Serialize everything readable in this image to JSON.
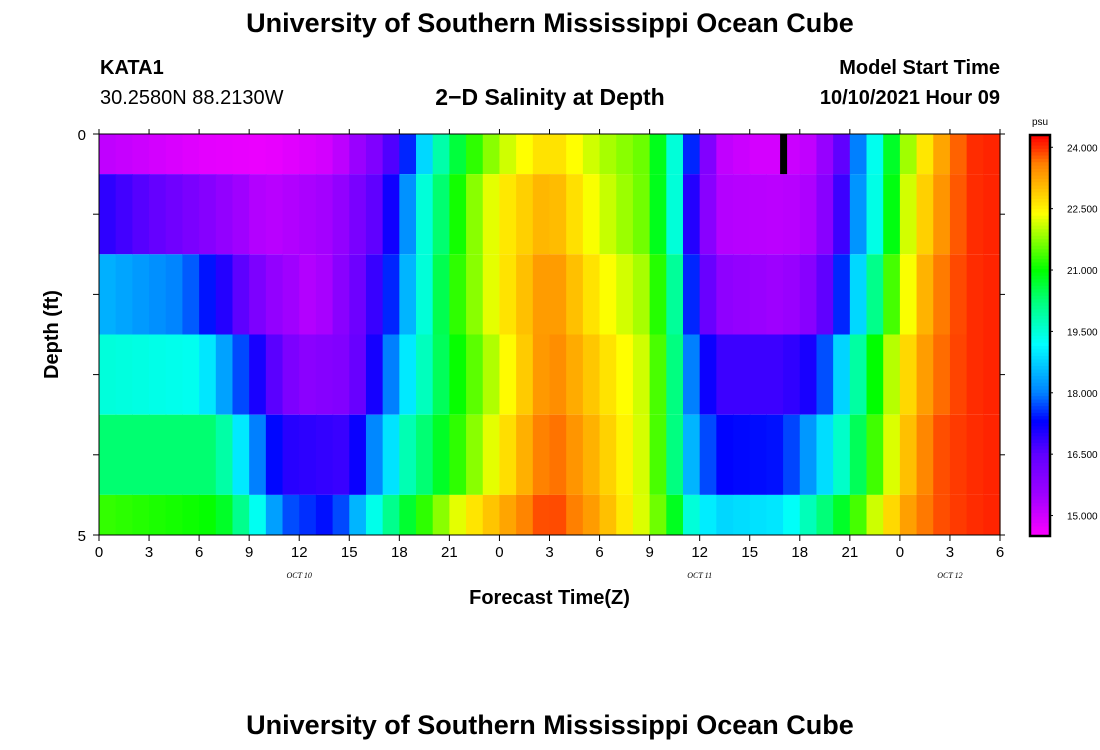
{
  "page": {
    "title_top": "University of Southern Mississippi Ocean Cube",
    "title_bottom": "University of Southern Mississippi Ocean Cube",
    "station": "KATA1",
    "coords": "30.2580N  88.2130W",
    "plot_title": "2−D Salinity at Depth",
    "model_label": "Model Start Time",
    "model_time": "10/10/2021 Hour 09"
  },
  "chart_data": {
    "type": "heatmap",
    "title": "2−D Salinity at Depth",
    "xlabel": "Forecast Time(Z)",
    "ylabel": "Depth (ft)",
    "x_tick_labels": [
      "0",
      "3",
      "6",
      "9",
      "12",
      "15",
      "18",
      "21",
      "0",
      "3",
      "6",
      "9",
      "12",
      "15",
      "18",
      "21",
      "0",
      "3",
      "6"
    ],
    "x_hours": [
      0,
      3,
      6,
      9,
      12,
      15,
      18,
      21,
      24,
      27,
      30,
      33,
      36,
      39,
      42,
      45,
      48,
      51,
      54
    ],
    "date_labels": [
      {
        "label": "OCT 10",
        "hour": 12
      },
      {
        "label": "OCT 11",
        "hour": 36
      },
      {
        "label": "OCT 12",
        "hour": 51
      }
    ],
    "y_tick_labels": [
      "0",
      "5"
    ],
    "ylim": [
      0,
      5
    ],
    "xlim": [
      0,
      54
    ],
    "depth_layers": [
      {
        "from": 0,
        "to": 0.5
      },
      {
        "from": 0.5,
        "to": 1.5
      },
      {
        "from": 1.5,
        "to": 2.5
      },
      {
        "from": 2.5,
        "to": 3.5
      },
      {
        "from": 3.5,
        "to": 4.5
      },
      {
        "from": 4.5,
        "to": 5
      }
    ],
    "salinity_knots": [
      [
        [
          0,
          15.2
        ],
        [
          6,
          14.8
        ],
        [
          10,
          14.7
        ],
        [
          14,
          15.0
        ],
        [
          17,
          16.2
        ],
        [
          18.5,
          17.5
        ],
        [
          20,
          19.5
        ],
        [
          22,
          21.0
        ],
        [
          24,
          22.0
        ],
        [
          27,
          22.8
        ],
        [
          30,
          22.0
        ],
        [
          33,
          21.5
        ],
        [
          34.5,
          19.5
        ],
        [
          35.5,
          17.5
        ],
        [
          37,
          15.2
        ],
        [
          40,
          14.9
        ],
        [
          43,
          15.2
        ],
        [
          44.5,
          16.5
        ],
        [
          45.5,
          18.0
        ],
        [
          47,
          20.0
        ],
        [
          48,
          21.5
        ],
        [
          50,
          23.0
        ],
        [
          52,
          24.0
        ],
        [
          54,
          24.1
        ]
      ],
      [
        [
          0,
          17.0
        ],
        [
          6,
          16.0
        ],
        [
          10,
          15.2
        ],
        [
          14,
          15.5
        ],
        [
          16.5,
          16.5
        ],
        [
          18,
          17.5
        ],
        [
          19.5,
          19.5
        ],
        [
          22,
          21.5
        ],
        [
          24,
          22.5
        ],
        [
          27,
          23.2
        ],
        [
          30,
          22.2
        ],
        [
          33,
          21.5
        ],
        [
          34.5,
          19.5
        ],
        [
          35.5,
          17.0
        ],
        [
          37,
          15.3
        ],
        [
          41,
          15.2
        ],
        [
          43,
          15.4
        ],
        [
          44.5,
          16.8
        ],
        [
          45.5,
          18.2
        ],
        [
          47,
          20.0
        ],
        [
          48,
          21.8
        ],
        [
          50,
          23.2
        ],
        [
          52,
          24.0
        ],
        [
          54,
          24.1
        ]
      ],
      [
        [
          0,
          18.5
        ],
        [
          5,
          18.0
        ],
        [
          7.5,
          17.0
        ],
        [
          10,
          15.8
        ],
        [
          13,
          15.2
        ],
        [
          16,
          16.5
        ],
        [
          17.5,
          17.5
        ],
        [
          19,
          19.0
        ],
        [
          21,
          21.0
        ],
        [
          24,
          22.5
        ],
        [
          27,
          23.5
        ],
        [
          30,
          22.5
        ],
        [
          33,
          21.8
        ],
        [
          34.5,
          20.0
        ],
        [
          35.5,
          17.5
        ],
        [
          37,
          15.8
        ],
        [
          41,
          15.5
        ],
        [
          43,
          16.0
        ],
        [
          44.5,
          17.5
        ],
        [
          46,
          19.5
        ],
        [
          48,
          22.0
        ],
        [
          50,
          23.5
        ],
        [
          52,
          24.0
        ],
        [
          54,
          24.1
        ]
      ],
      [
        [
          0,
          19.5
        ],
        [
          6,
          19.3
        ],
        [
          8,
          18.0
        ],
        [
          10,
          16.8
        ],
        [
          12,
          15.8
        ],
        [
          15,
          16.0
        ],
        [
          17,
          17.5
        ],
        [
          18.5,
          19.0
        ],
        [
          21,
          20.8
        ],
        [
          24,
          22.2
        ],
        [
          27,
          23.6
        ],
        [
          30,
          22.8
        ],
        [
          33,
          22.0
        ],
        [
          34.5,
          20.2
        ],
        [
          35.5,
          18.0
        ],
        [
          37,
          16.8
        ],
        [
          41,
          16.8
        ],
        [
          43,
          17.2
        ],
        [
          44.5,
          18.8
        ],
        [
          46,
          20.5
        ],
        [
          48,
          22.5
        ],
        [
          50,
          23.6
        ],
        [
          52,
          24.0
        ],
        [
          54,
          24.1
        ]
      ],
      [
        [
          0,
          20.3
        ],
        [
          7,
          20.3
        ],
        [
          8,
          19.5
        ],
        [
          9.5,
          18.0
        ],
        [
          11,
          17.0
        ],
        [
          15,
          16.8
        ],
        [
          17,
          18.5
        ],
        [
          18.5,
          19.8
        ],
        [
          21,
          21.0
        ],
        [
          24,
          22.5
        ],
        [
          27,
          23.8
        ],
        [
          30,
          23.0
        ],
        [
          33,
          22.0
        ],
        [
          34.5,
          20.2
        ],
        [
          35.5,
          18.5
        ],
        [
          37,
          17.3
        ],
        [
          41,
          17.4
        ],
        [
          43,
          18.5
        ],
        [
          45,
          20.0
        ],
        [
          47,
          21.8
        ],
        [
          48.5,
          23.0
        ],
        [
          50,
          23.8
        ],
        [
          52,
          24.0
        ],
        [
          54,
          24.1
        ]
      ],
      [
        [
          0,
          21.3
        ],
        [
          7,
          21.0
        ],
        [
          8,
          20.5
        ],
        [
          9.5,
          19.3
        ],
        [
          11,
          17.8
        ],
        [
          14,
          17.3
        ],
        [
          15.5,
          18.5
        ],
        [
          17,
          19.8
        ],
        [
          19,
          21.0
        ],
        [
          22,
          22.5
        ],
        [
          25,
          23.4
        ],
        [
          27,
          24.0
        ],
        [
          30,
          23.2
        ],
        [
          33,
          22.0
        ],
        [
          34.5,
          20.8
        ],
        [
          35.5,
          19.5
        ],
        [
          37,
          18.8
        ],
        [
          41,
          19.0
        ],
        [
          43,
          20.0
        ],
        [
          45,
          21.0
        ],
        [
          47,
          22.5
        ],
        [
          48.5,
          23.3
        ],
        [
          50,
          23.8
        ],
        [
          52,
          24.0
        ],
        [
          54,
          24.1
        ]
      ]
    ],
    "color_scale": {
      "unit": "psu",
      "min": 14.5,
      "max": 24.3,
      "tick_labels": [
        "24.000",
        "22.500",
        "21.000",
        "19.500",
        "18.000",
        "16.500",
        "15.000"
      ],
      "tick_values": [
        24.0,
        22.5,
        21.0,
        19.5,
        18.0,
        16.5,
        15.0
      ],
      "stops": [
        [
          14.5,
          "#ff00ff"
        ],
        [
          15.5,
          "#a000ff"
        ],
        [
          16.5,
          "#6000ff"
        ],
        [
          17.3,
          "#0000ff"
        ],
        [
          18.0,
          "#0080ff"
        ],
        [
          19.2,
          "#00ffff"
        ],
        [
          20.2,
          "#00ff80"
        ],
        [
          21.0,
          "#00ff00"
        ],
        [
          21.7,
          "#80ff00"
        ],
        [
          22.4,
          "#ffff00"
        ],
        [
          23.0,
          "#ffc000"
        ],
        [
          23.6,
          "#ff8000"
        ],
        [
          24.0,
          "#ff3000"
        ],
        [
          24.3,
          "#ff0000"
        ]
      ]
    },
    "current_time_marker_hour": 41
  }
}
